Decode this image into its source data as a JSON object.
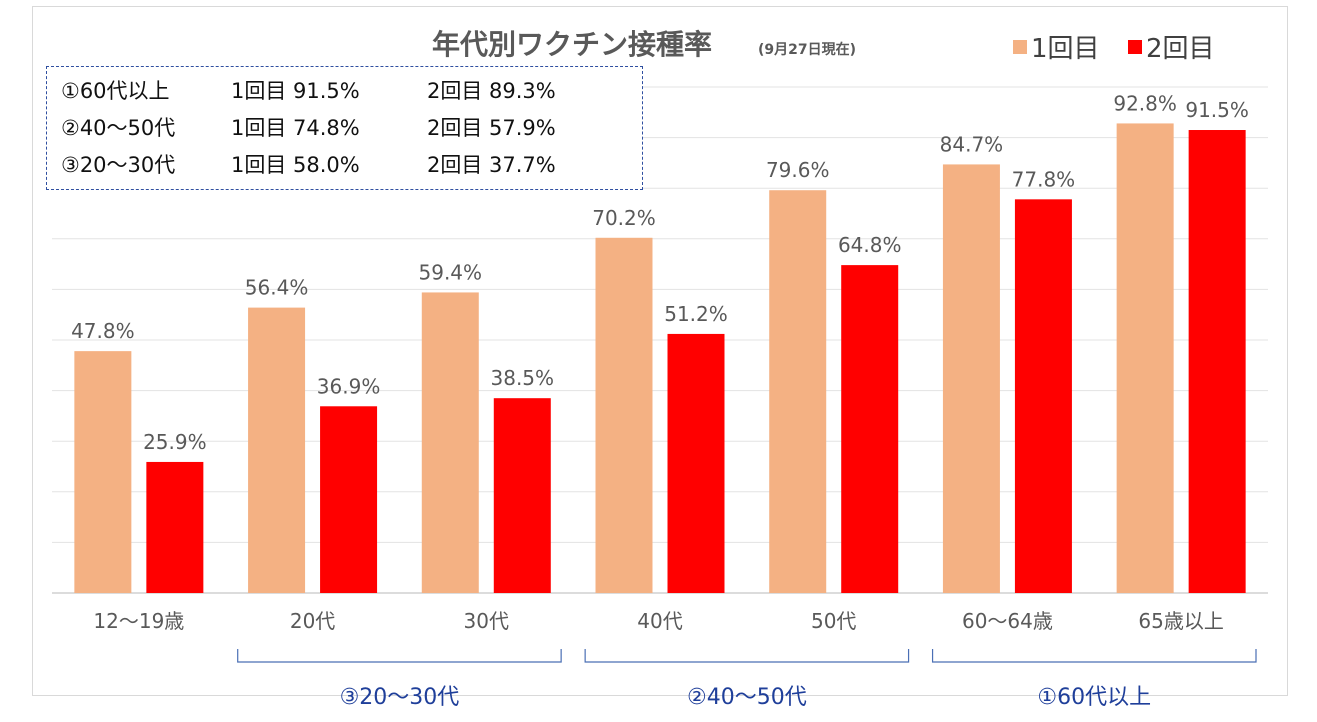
{
  "chart_data": {
    "type": "bar",
    "title": "年代別ワクチン接種率",
    "subtitle": "(9月27日現在)",
    "categories": [
      "12～19歳",
      "20代",
      "30代",
      "40代",
      "50代",
      "60～64歳",
      "65歳以上"
    ],
    "series": [
      {
        "name": "1回目",
        "color": "#f4b183",
        "values": [
          47.8,
          56.4,
          59.4,
          70.2,
          79.6,
          84.7,
          92.8
        ],
        "labels": [
          "47.8%",
          "56.4%",
          "59.4%",
          "70.2%",
          "79.6%",
          "84.7%",
          "92.8%"
        ]
      },
      {
        "name": "2回目",
        "color": "#ff0000",
        "values": [
          25.9,
          36.9,
          38.5,
          51.2,
          64.8,
          77.8,
          91.5
        ],
        "labels": [
          "25.9%",
          "36.9%",
          "38.5%",
          "51.2%",
          "64.8%",
          "77.8%",
          "91.5%"
        ]
      }
    ],
    "ylim": [
      0,
      100
    ],
    "grid": true,
    "legend": "top-right",
    "groups": [
      {
        "label": "③20～30代",
        "from": 1,
        "to": 2
      },
      {
        "label": "②40～50代",
        "from": 3,
        "to": 4
      },
      {
        "label": "①60代以上",
        "from": 5,
        "to": 6
      }
    ]
  },
  "summary": [
    {
      "age": "①60代以上",
      "dose1": "1回目 91.5%",
      "dose2": "2回目 89.3%"
    },
    {
      "age": "②40～50代",
      "dose1": "1回目 74.8%",
      "dose2": "2回目 57.9%"
    },
    {
      "age": "③20～30代",
      "dose1": "1回目 58.0%",
      "dose2": "2回目 37.7%"
    }
  ]
}
